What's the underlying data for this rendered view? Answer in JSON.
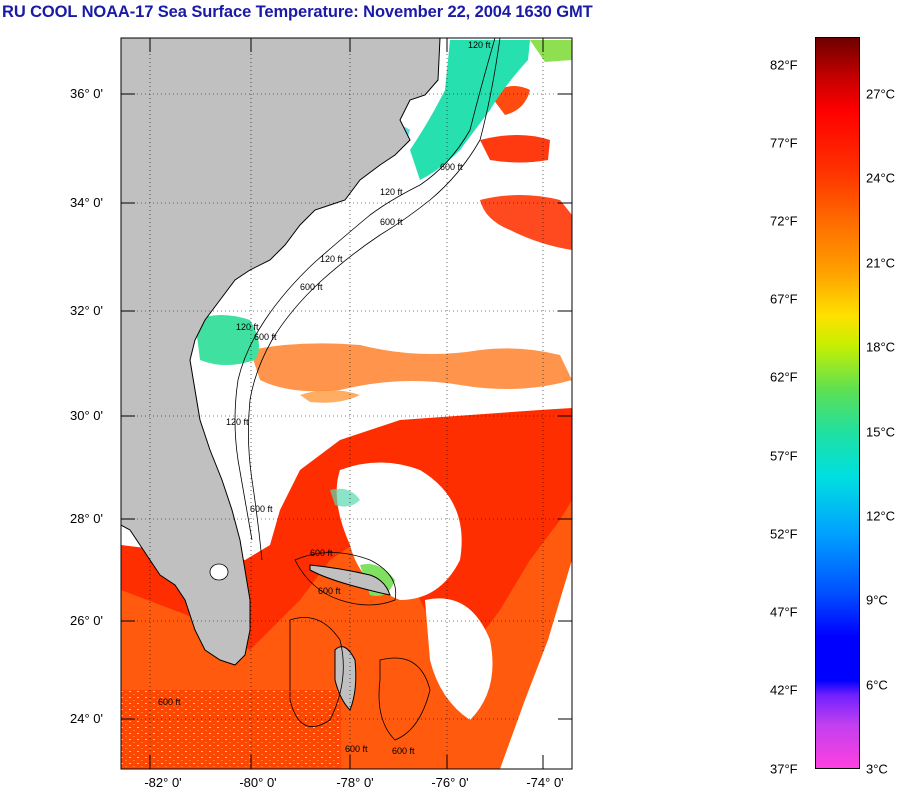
{
  "title": "RU COOL  NOAA-17  Sea Surface Temperature:  November 22, 2004 1630 GMT",
  "map": {
    "lat_labels": [
      "36° 0'",
      "34° 0'",
      "32° 0'",
      "30° 0'",
      "28° 0'",
      "26° 0'",
      "24° 0'"
    ],
    "lon_labels": [
      "-82° 0'",
      "-80° 0'",
      "-78° 0'",
      "-76° 0'",
      "-74° 0'"
    ],
    "contour_labels": [
      "120 ft",
      "600 ft",
      "120 ft",
      "600 ft",
      "120 ft",
      "600 ft",
      "120 ft",
      "600 ft",
      "120 ft",
      "600 ft",
      "600 ft",
      "600 ft",
      "600 ft",
      "600 ft",
      "600 ft"
    ]
  },
  "colorbar": {
    "fahrenheit_labels": [
      "82°F",
      "77°F",
      "72°F",
      "67°F",
      "62°F",
      "57°F",
      "52°F",
      "47°F",
      "42°F",
      "37°F"
    ],
    "celsius_labels": [
      "27°C",
      "24°C",
      "21°C",
      "18°C",
      "15°C",
      "12°C",
      "9°C",
      "6°C",
      "3°C"
    ],
    "top_fahrenheit": 84,
    "bottom_fahrenheit": 37
  },
  "colors": {
    "land": "#c0c0c0",
    "title": "#1a1aa6",
    "warm": "#ff2a00",
    "orange": "#ff6a10"
  }
}
